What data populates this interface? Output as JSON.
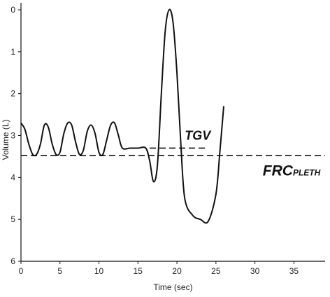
{
  "chart_data": {
    "type": "line",
    "xlabel": "Time (sec)",
    "ylabel": "Volume (L)",
    "xlim": [
      0,
      39
    ],
    "ylim": [
      0,
      6
    ],
    "y_inverted": true,
    "grid": false,
    "xticks": [
      0,
      5,
      10,
      15,
      20,
      25,
      30,
      35
    ],
    "yticks": [
      0,
      1,
      2,
      3,
      4,
      5,
      6
    ],
    "series": [
      {
        "style": "solid",
        "color": "#111111",
        "x": [
          0,
          0.5,
          1,
          1.5,
          2,
          2.5,
          3,
          3.5,
          4,
          4.5,
          5,
          5.5,
          6,
          6.5,
          7,
          7.5,
          8,
          8.5,
          9,
          9.5,
          10,
          10.5,
          11,
          11.5,
          12,
          12.5,
          13,
          14,
          15,
          16,
          16.5,
          17,
          17.5,
          18,
          18.5,
          19,
          19.5,
          20,
          20.5,
          21,
          22,
          23,
          24,
          25,
          25.5,
          26
        ],
        "y": [
          2.7,
          2.85,
          3.2,
          3.45,
          3.45,
          3.2,
          2.75,
          2.8,
          3.2,
          3.45,
          3.4,
          2.95,
          2.7,
          2.75,
          3.15,
          3.45,
          3.35,
          2.9,
          2.75,
          2.95,
          3.4,
          3.45,
          3.1,
          2.75,
          2.7,
          3.0,
          3.3,
          3.3,
          3.3,
          3.3,
          3.6,
          4.1,
          3.7,
          2.0,
          0.5,
          0.0,
          0.3,
          1.5,
          3.2,
          4.5,
          4.9,
          5.0,
          5.05,
          4.4,
          3.4,
          2.3
        ]
      },
      {
        "style": "dashed",
        "color": "#111111",
        "x": [
          16.5,
          24
        ],
        "y": [
          3.3,
          3.3
        ]
      },
      {
        "style": "dashed",
        "color": "#111111",
        "x": [
          0,
          39
        ],
        "y": [
          3.48,
          3.48
        ]
      }
    ],
    "annotations": [
      {
        "text": "TGV",
        "x": 21,
        "y": 3.1
      },
      {
        "text": "FRC",
        "sub": "PLETH",
        "x": 31,
        "y": 3.95
      }
    ]
  }
}
